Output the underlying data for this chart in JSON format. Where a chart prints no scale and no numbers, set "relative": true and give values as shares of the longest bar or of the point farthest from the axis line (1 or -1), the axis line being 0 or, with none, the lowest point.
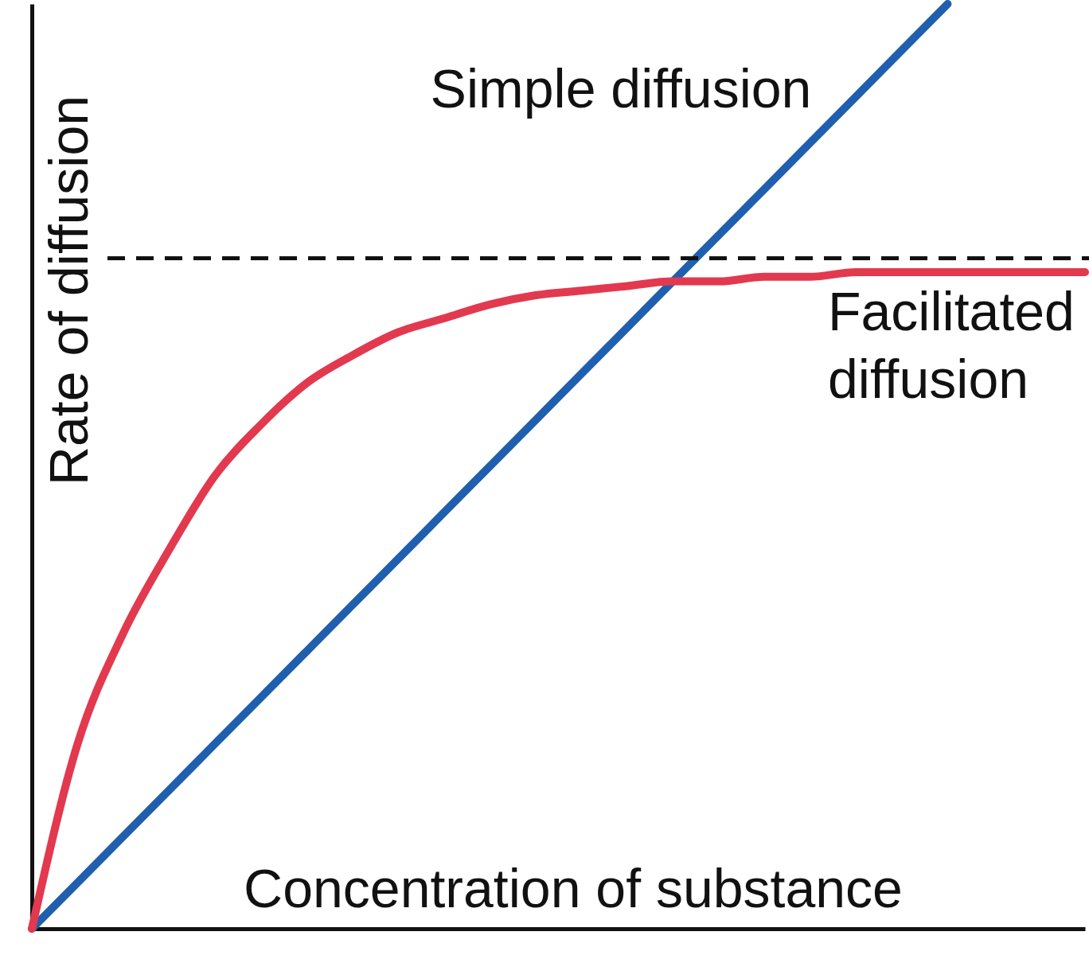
{
  "chart_data": {
    "type": "line",
    "relative": true,
    "xlabel": "Concentration of substance",
    "ylabel": "Rate of diffusion",
    "categories": [
      null,
      null,
      null,
      null,
      null,
      null,
      null,
      null,
      null,
      null,
      null,
      null,
      null,
      null,
      null,
      null,
      null,
      null,
      null,
      null,
      null,
      null,
      null,
      null
    ],
    "series": [
      {
        "name": "Simple diffusion",
        "color": "#1f5fae",
        "values": [
          0,
          0.05,
          0.1,
          0.15,
          0.2,
          0.25,
          0.3,
          0.35,
          0.4,
          0.45,
          0.5,
          0.55,
          0.6,
          0.65,
          0.7,
          0.75,
          0.8,
          0.85,
          0.9,
          0.95,
          1,
          null,
          null,
          null
        ]
      },
      {
        "name": "Facilitated diffusion",
        "color": "#e2394f",
        "values": [
          0,
          0.2,
          0.32,
          0.41,
          0.49,
          0.545,
          0.59,
          0.62,
          0.645,
          0.66,
          0.675,
          0.685,
          0.69,
          0.695,
          0.7,
          0.7,
          0.705,
          0.705,
          0.71,
          0.71,
          0.71,
          0.71,
          0.71,
          0.71
        ]
      }
    ],
    "ref_lines": [
      {
        "axis": "y",
        "value": 0.725,
        "color": "#111111",
        "line_style": "dashed"
      }
    ],
    "legend": false,
    "grid": false,
    "tick_labels": false,
    "line_style": "solid"
  }
}
